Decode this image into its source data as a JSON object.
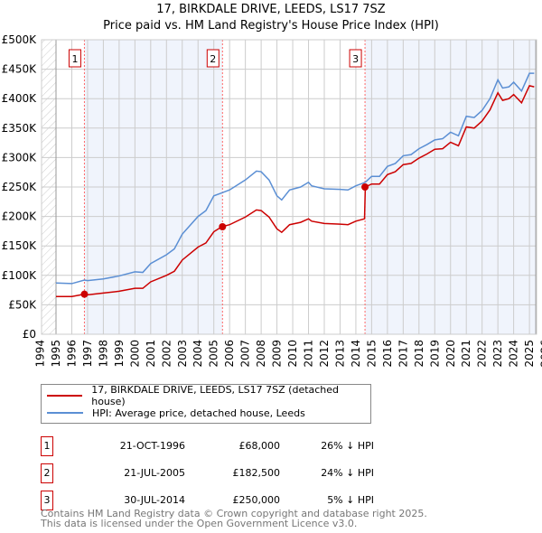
{
  "chart_data": {
    "type": "line",
    "title": "17, BIRKDALE DRIVE, LEEDS, LS17 7SZ",
    "subtitle": "Price paid vs. HM Land Registry's House Price Index (HPI)",
    "xlabel": "",
    "ylabel": "",
    "xlim": [
      1994,
      2026
    ],
    "ylim": [
      0,
      500000
    ],
    "x_ticks": [
      "1994",
      "1995",
      "1996",
      "1997",
      "1998",
      "1999",
      "2000",
      "2001",
      "2002",
      "2003",
      "2004",
      "2005",
      "2006",
      "2007",
      "2008",
      "2009",
      "2010",
      "2011",
      "2012",
      "2013",
      "2014",
      "2015",
      "2016",
      "2017",
      "2018",
      "2019",
      "2020",
      "2021",
      "2022",
      "2023",
      "2024",
      "2025",
      "2026"
    ],
    "y_ticks": [
      "£0",
      "£50K",
      "£100K",
      "£150K",
      "£200K",
      "£250K",
      "£300K",
      "£350K",
      "£400K",
      "£450K",
      "£500K"
    ],
    "grid": true,
    "series": [
      {
        "name": "17, BIRKDALE DRIVE, LEEDS, LS17 7SZ (detached house)",
        "color": "#cc0000",
        "x": [
          1995,
          1996,
          1996.8,
          1997,
          1998,
          1999,
          2000,
          2000.5,
          2001,
          2002,
          2002.5,
          2003,
          2004,
          2004.5,
          2005,
          2005.5,
          2006,
          2007,
          2007.7,
          2008,
          2008.5,
          2009,
          2009.3,
          2009.8,
          2010.5,
          2011,
          2011.2,
          2012,
          2013,
          2013.5,
          2014,
          2014.55,
          2014.6,
          2015,
          2015.5,
          2016,
          2016.5,
          2017,
          2017.5,
          2018,
          2018.5,
          2019,
          2019.5,
          2020,
          2020.5,
          2021,
          2021.5,
          2022,
          2022.5,
          2023,
          2023.3,
          2023.7,
          2024,
          2024.5,
          2025,
          2025.3
        ],
        "y": [
          64000,
          64000,
          68000,
          67000,
          70000,
          73000,
          78000,
          78000,
          89000,
          100000,
          107000,
          126000,
          148000,
          155000,
          174000,
          182500,
          186000,
          199000,
          211000,
          210000,
          199000,
          179000,
          173000,
          186000,
          190000,
          196000,
          192000,
          188000,
          187000,
          186000,
          192000,
          196000,
          250000,
          255000,
          255000,
          271000,
          276000,
          288000,
          290000,
          299000,
          306000,
          314000,
          315000,
          326000,
          320000,
          352000,
          350000,
          362000,
          381000,
          410000,
          397000,
          400000,
          407000,
          393000,
          422000,
          420000
        ]
      },
      {
        "name": "HPI: Average price, detached house, Leeds",
        "color": "#5b8fd4",
        "x": [
          1995,
          1996,
          1996.8,
          1997,
          1998,
          1999,
          2000,
          2000.5,
          2001,
          2002,
          2002.5,
          2003,
          2004,
          2004.5,
          2005,
          2005.5,
          2006,
          2007,
          2007.7,
          2008,
          2008.5,
          2009,
          2009.3,
          2009.8,
          2010.5,
          2011,
          2011.2,
          2012,
          2013,
          2013.5,
          2014,
          2014.6,
          2015,
          2015.5,
          2016,
          2016.5,
          2017,
          2017.5,
          2018,
          2018.5,
          2019,
          2019.5,
          2020,
          2020.5,
          2021,
          2021.5,
          2022,
          2022.5,
          2023,
          2023.3,
          2023.7,
          2024,
          2024.5,
          2025,
          2025.3
        ],
        "y": [
          87000,
          86000,
          92000,
          91000,
          94000,
          99000,
          106000,
          105000,
          120000,
          135000,
          145000,
          170000,
          200000,
          210000,
          235000,
          240000,
          245000,
          262000,
          277000,
          276000,
          262000,
          235000,
          228000,
          245000,
          250000,
          258000,
          252000,
          247000,
          246000,
          245000,
          252000,
          258000,
          268000,
          268000,
          285000,
          290000,
          303000,
          305000,
          315000,
          322000,
          330000,
          332000,
          343000,
          337000,
          370000,
          368000,
          380000,
          400000,
          432000,
          418000,
          420000,
          428000,
          413000,
          443000,
          443000
        ]
      }
    ],
    "sales": [
      {
        "num": "1",
        "x": 1996.8,
        "y": 68000,
        "date": "21-OCT-1996",
        "price": "£68,000",
        "hpi": "26% ↓ HPI"
      },
      {
        "num": "2",
        "x": 2005.55,
        "y": 182500,
        "date": "21-JUL-2005",
        "price": "£182,500",
        "hpi": "24% ↓ HPI"
      },
      {
        "num": "3",
        "x": 2014.58,
        "y": 250000,
        "date": "30-JUL-2014",
        "price": "£250,000",
        "hpi": "5% ↓ HPI"
      }
    ],
    "legend_placement": "bottom"
  },
  "footer": {
    "line1": "Contains HM Land Registry data © Crown copyright and database right 2025.",
    "line2": "This data is licensed under the Open Government Licence v3.0."
  }
}
